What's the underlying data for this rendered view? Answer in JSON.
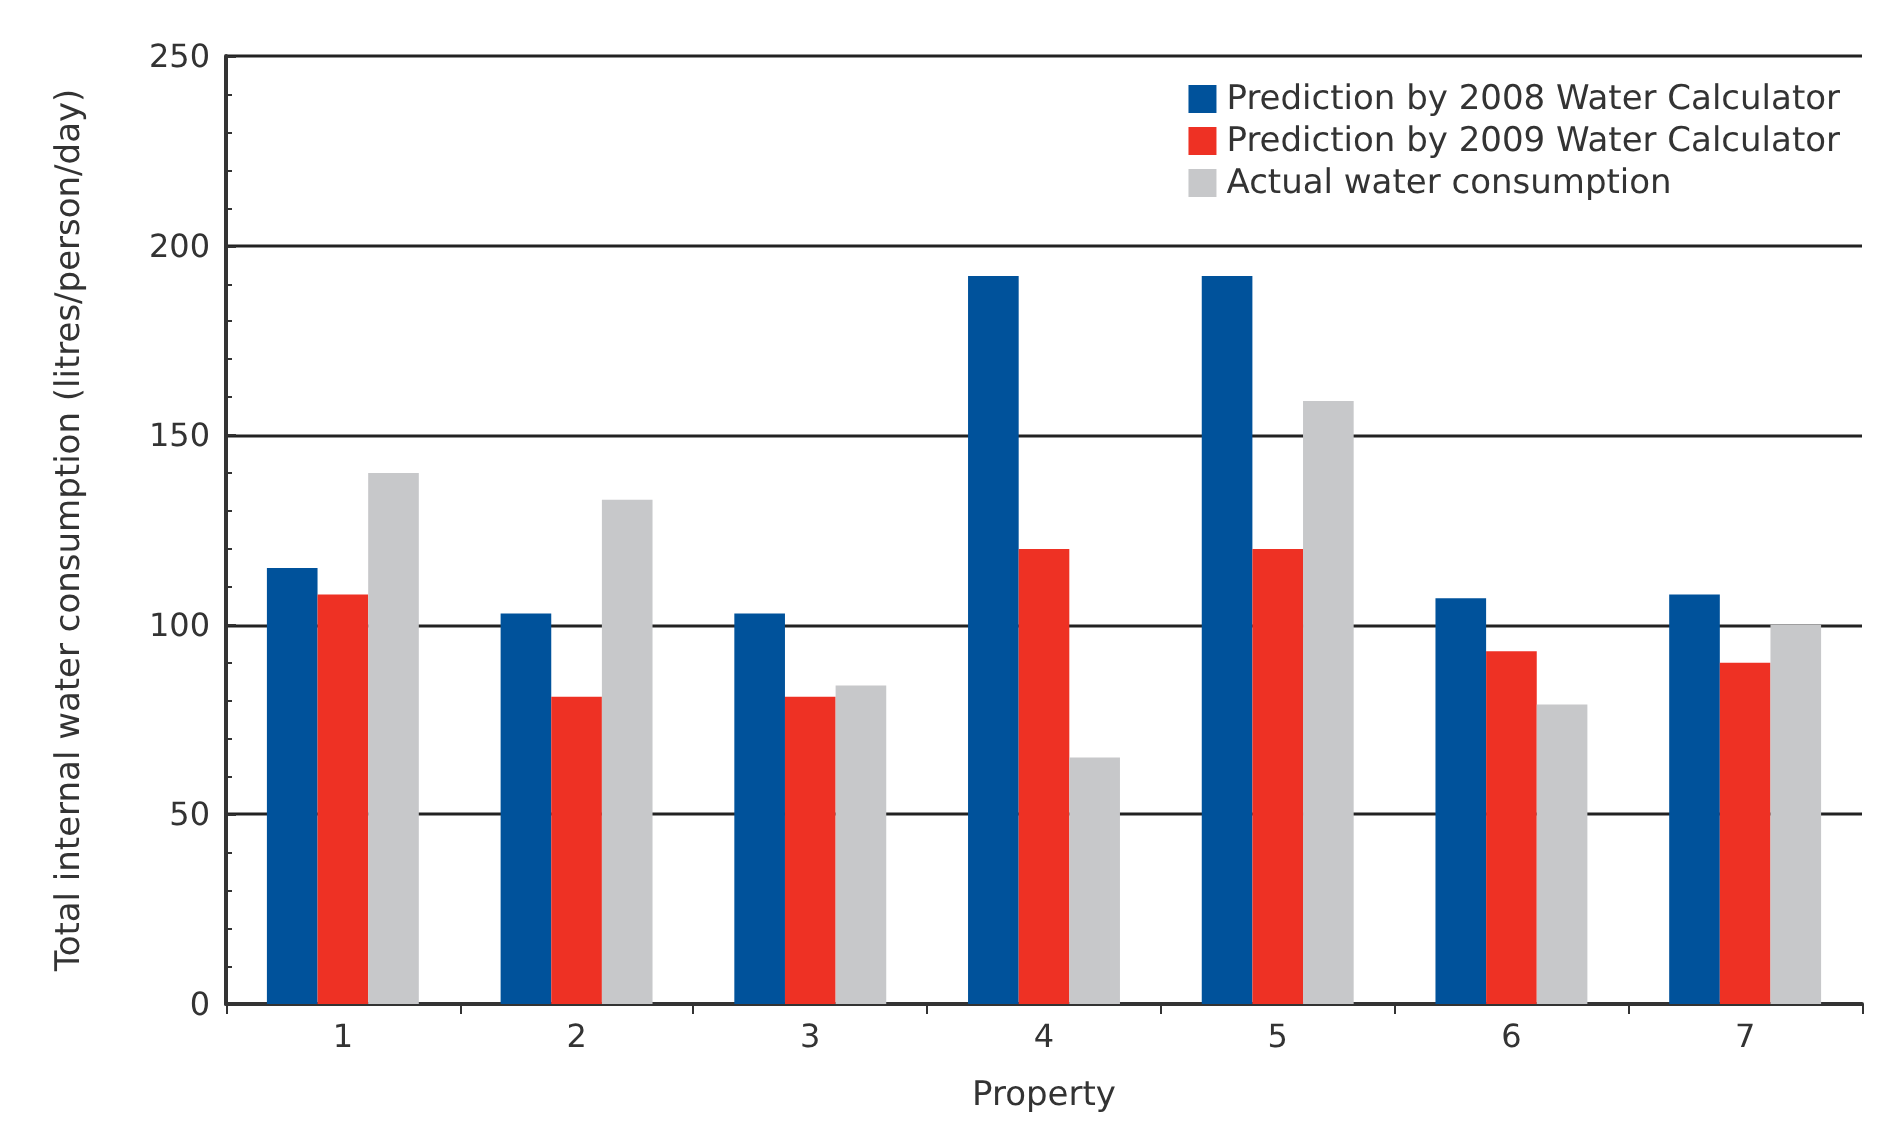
{
  "chart_data": {
    "type": "bar",
    "xlabel": "Property",
    "ylabel": "Total internal water consumption (litres/person/day)",
    "categories": [
      "1",
      "2",
      "3",
      "4",
      "5",
      "6",
      "7"
    ],
    "series": [
      {
        "name": "Prediction by 2008 Water Calculator",
        "color": "#00529b",
        "values": [
          115,
          103,
          103,
          192,
          192,
          107,
          108
        ]
      },
      {
        "name": "Prediction by 2009 Water Calculator",
        "color": "#ee3124",
        "values": [
          108,
          81,
          81,
          120,
          120,
          93,
          90
        ]
      },
      {
        "name": "Actual water consumption",
        "color": "#c7c8ca",
        "values": [
          140,
          133,
          84,
          65,
          159,
          79,
          100
        ]
      }
    ],
    "ylim": [
      0,
      250
    ],
    "yticks": [
      0,
      50,
      100,
      150,
      200,
      250
    ],
    "grid": "y",
    "legend": "top right"
  }
}
